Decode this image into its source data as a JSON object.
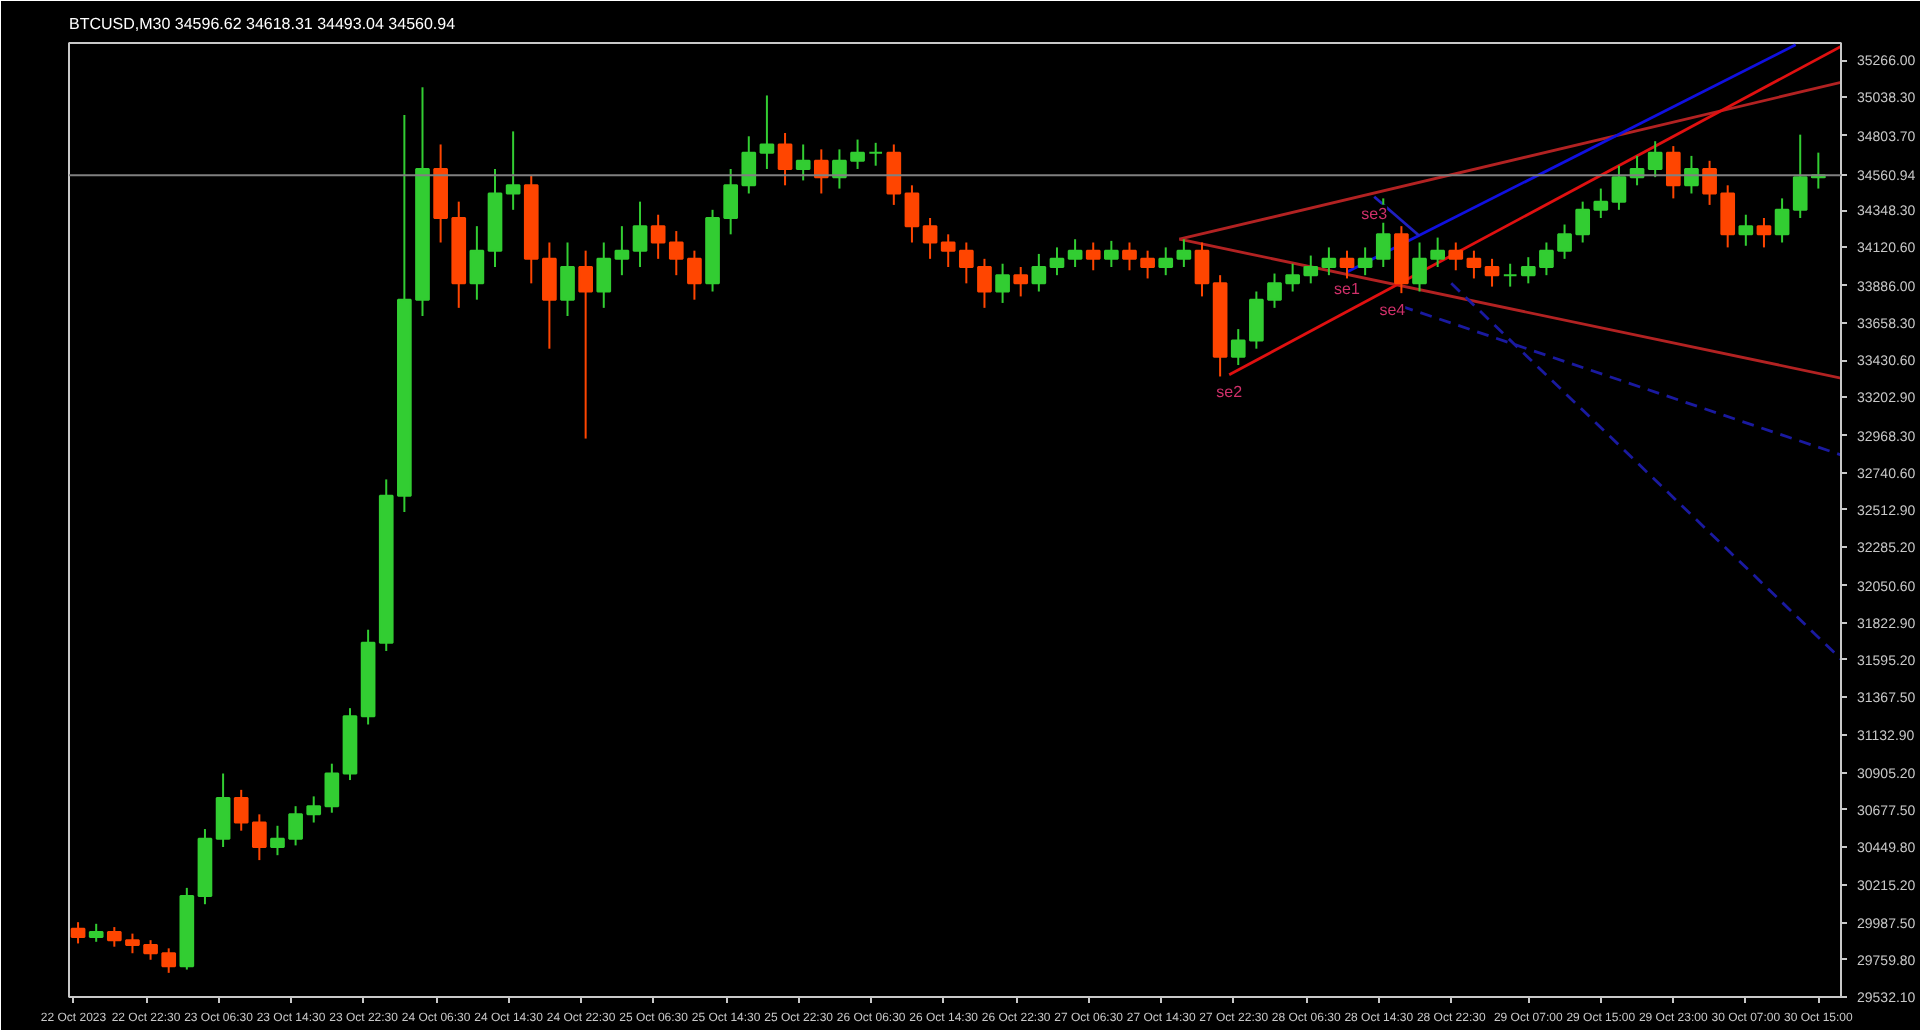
{
  "chart_data": {
    "type": "candlestick",
    "title": "BTCUSD,M30  34596.62 34618.31 34493.04 34560.94",
    "x": [
      "2023-10-22T15:00",
      "2023-10-22T17:00",
      "2023-10-22T19:00",
      "2023-10-22T21:00",
      "2023-10-22T23:00",
      "2023-10-23T01:00",
      "2023-10-23T03:00",
      "2023-10-23T05:00",
      "2023-10-23T07:00",
      "2023-10-23T09:00",
      "2023-10-23T11:00",
      "2023-10-23T13:00",
      "2023-10-23T15:00",
      "2023-10-23T17:00",
      "2023-10-23T19:00",
      "2023-10-23T21:00",
      "2023-10-23T23:00",
      "2023-10-24T01:00",
      "2023-10-24T03:00",
      "2023-10-24T05:00",
      "2023-10-24T07:00",
      "2023-10-24T09:00",
      "2023-10-24T11:00",
      "2023-10-24T13:00",
      "2023-10-24T15:00",
      "2023-10-24T17:00",
      "2023-10-24T19:00",
      "2023-10-24T21:00",
      "2023-10-24T23:00",
      "2023-10-25T01:00",
      "2023-10-25T03:00",
      "2023-10-25T05:00",
      "2023-10-25T07:00",
      "2023-10-25T09:00",
      "2023-10-25T11:00",
      "2023-10-25T13:00",
      "2023-10-25T15:00",
      "2023-10-25T17:00",
      "2023-10-25T19:00",
      "2023-10-25T21:00",
      "2023-10-25T23:00",
      "2023-10-26T01:00",
      "2023-10-26T03:00",
      "2023-10-26T05:00",
      "2023-10-26T07:00",
      "2023-10-26T09:00",
      "2023-10-26T11:00",
      "2023-10-26T13:00",
      "2023-10-26T15:00",
      "2023-10-26T17:00",
      "2023-10-26T19:00",
      "2023-10-26T21:00",
      "2023-10-26T23:00",
      "2023-10-27T01:00",
      "2023-10-27T03:00",
      "2023-10-27T05:00",
      "2023-10-27T07:00",
      "2023-10-27T09:00",
      "2023-10-27T11:00",
      "2023-10-27T13:00",
      "2023-10-27T15:00",
      "2023-10-27T17:00",
      "2023-10-27T19:00",
      "2023-10-27T21:00",
      "2023-10-27T23:00",
      "2023-10-28T01:00",
      "2023-10-28T03:00",
      "2023-10-28T05:00",
      "2023-10-28T07:00",
      "2023-10-28T09:00",
      "2023-10-28T11:00",
      "2023-10-28T13:00",
      "2023-10-28T15:00",
      "2023-10-28T17:00",
      "2023-10-28T19:00",
      "2023-10-28T21:00",
      "2023-10-28T23:00",
      "2023-10-29T01:00",
      "2023-10-29T03:00",
      "2023-10-29T05:00",
      "2023-10-29T07:00",
      "2023-10-29T09:00",
      "2023-10-29T11:00",
      "2023-10-29T13:00",
      "2023-10-29T15:00",
      "2023-10-29T17:00",
      "2023-10-29T19:00",
      "2023-10-29T21:00",
      "2023-10-29T23:00",
      "2023-10-30T01:00",
      "2023-10-30T03:00",
      "2023-10-30T05:00",
      "2023-10-30T07:00",
      "2023-10-30T09:00",
      "2023-10-30T11:00",
      "2023-10-30T13:00",
      "2023-10-30T15:00"
    ],
    "ohlc": [
      [
        29950,
        29990,
        29860,
        29900
      ],
      [
        29900,
        29980,
        29870,
        29930
      ],
      [
        29930,
        29960,
        29840,
        29880
      ],
      [
        29880,
        29920,
        29800,
        29850
      ],
      [
        29850,
        29880,
        29760,
        29800
      ],
      [
        29800,
        29830,
        29680,
        29720
      ],
      [
        29720,
        30200,
        29700,
        30150
      ],
      [
        30150,
        30560,
        30100,
        30500
      ],
      [
        30500,
        30900,
        30450,
        30750
      ],
      [
        30750,
        30800,
        30550,
        30600
      ],
      [
        30600,
        30650,
        30370,
        30450
      ],
      [
        30450,
        30580,
        30400,
        30500
      ],
      [
        30500,
        30700,
        30460,
        30650
      ],
      [
        30650,
        30760,
        30600,
        30700
      ],
      [
        30700,
        30960,
        30660,
        30900
      ],
      [
        30900,
        31300,
        30860,
        31250
      ],
      [
        31250,
        31780,
        31200,
        31700
      ],
      [
        31700,
        32700,
        31650,
        32600
      ],
      [
        32600,
        34930,
        32500,
        33800
      ],
      [
        33800,
        35100,
        33700,
        34600
      ],
      [
        34600,
        34750,
        34150,
        34300
      ],
      [
        34300,
        34400,
        33750,
        33900
      ],
      [
        33900,
        34250,
        33800,
        34100
      ],
      [
        34100,
        34600,
        34000,
        34450
      ],
      [
        34450,
        34830,
        34350,
        34500
      ],
      [
        34500,
        34560,
        33900,
        34050
      ],
      [
        34050,
        34150,
        33500,
        33800
      ],
      [
        33800,
        34150,
        33700,
        34000
      ],
      [
        34000,
        34100,
        32950,
        33850
      ],
      [
        33850,
        34150,
        33750,
        34050
      ],
      [
        34050,
        34250,
        33950,
        34100
      ],
      [
        34100,
        34400,
        34000,
        34250
      ],
      [
        34250,
        34320,
        34050,
        34150
      ],
      [
        34150,
        34220,
        33950,
        34050
      ],
      [
        34050,
        34100,
        33800,
        33900
      ],
      [
        33900,
        34350,
        33850,
        34300
      ],
      [
        34300,
        34600,
        34200,
        34500
      ],
      [
        34500,
        34800,
        34450,
        34700
      ],
      [
        34700,
        35050,
        34600,
        34750
      ],
      [
        34750,
        34820,
        34500,
        34600
      ],
      [
        34600,
        34750,
        34530,
        34650
      ],
      [
        34650,
        34720,
        34450,
        34550
      ],
      [
        34550,
        34720,
        34480,
        34650
      ],
      [
        34650,
        34780,
        34600,
        34700
      ],
      [
        34700,
        34760,
        34620,
        34700
      ],
      [
        34700,
        34750,
        34380,
        34450
      ],
      [
        34450,
        34500,
        34150,
        34250
      ],
      [
        34250,
        34300,
        34050,
        34150
      ],
      [
        34150,
        34200,
        34000,
        34100
      ],
      [
        34100,
        34150,
        33900,
        34000
      ],
      [
        34000,
        34050,
        33750,
        33850
      ],
      [
        33850,
        34020,
        33780,
        33950
      ],
      [
        33950,
        34000,
        33820,
        33900
      ],
      [
        33900,
        34080,
        33850,
        34000
      ],
      [
        34000,
        34120,
        33950,
        34050
      ],
      [
        34050,
        34170,
        34000,
        34100
      ],
      [
        34100,
        34150,
        33980,
        34050
      ],
      [
        34050,
        34160,
        34000,
        34100
      ],
      [
        34100,
        34150,
        33980,
        34050
      ],
      [
        34050,
        34100,
        33930,
        34000
      ],
      [
        34000,
        34120,
        33950,
        34050
      ],
      [
        34050,
        34170,
        34000,
        34100
      ],
      [
        34100,
        34150,
        33820,
        33900
      ],
      [
        33900,
        33950,
        33330,
        33450
      ],
      [
        33450,
        33620,
        33400,
        33550
      ],
      [
        33550,
        33850,
        33500,
        33800
      ],
      [
        33800,
        33960,
        33750,
        33900
      ],
      [
        33900,
        34020,
        33850,
        33950
      ],
      [
        33950,
        34070,
        33900,
        34000
      ],
      [
        34000,
        34120,
        33950,
        34050
      ],
      [
        34050,
        34100,
        33930,
        34000
      ],
      [
        34000,
        34120,
        33950,
        34050
      ],
      [
        34050,
        34420,
        34000,
        34200
      ],
      [
        34200,
        34250,
        33840,
        33900
      ],
      [
        33900,
        34150,
        33850,
        34050
      ],
      [
        34050,
        34180,
        34000,
        34100
      ],
      [
        34100,
        34150,
        33980,
        34050
      ],
      [
        34050,
        34100,
        33930,
        34000
      ],
      [
        34000,
        34050,
        33880,
        33950
      ],
      [
        33950,
        34020,
        33880,
        33950
      ],
      [
        33950,
        34060,
        33900,
        34000
      ],
      [
        34000,
        34150,
        33950,
        34100
      ],
      [
        34100,
        34260,
        34050,
        34200
      ],
      [
        34200,
        34400,
        34150,
        34350
      ],
      [
        34350,
        34480,
        34300,
        34400
      ],
      [
        34400,
        34620,
        34350,
        34550
      ],
      [
        34550,
        34680,
        34500,
        34600
      ],
      [
        34600,
        34770,
        34550,
        34700
      ],
      [
        34700,
        34740,
        34420,
        34500
      ],
      [
        34500,
        34680,
        34450,
        34600
      ],
      [
        34600,
        34650,
        34380,
        34450
      ],
      [
        34450,
        34500,
        34120,
        34200
      ],
      [
        34200,
        34320,
        34130,
        34250
      ],
      [
        34250,
        34300,
        34120,
        34200
      ],
      [
        34200,
        34420,
        34150,
        34350
      ],
      [
        34350,
        34810,
        34300,
        34550
      ],
      [
        34550,
        34700,
        34480,
        34560.94
      ]
    ],
    "series": [
      {
        "type": "line",
        "color": "#b22222",
        "x": [
          "2023-10-27T16:30",
          "2023-10-30T17:30"
        ],
        "values": [
          34170,
          35130
        ]
      },
      {
        "type": "line",
        "color": "#b22222",
        "x": [
          "2023-10-27T16:30",
          "2023-10-30T17:30"
        ],
        "values": [
          34170,
          33320
        ]
      },
      {
        "type": "line",
        "color": "#e01010",
        "x": [
          "2023-10-27T22:00",
          "2023-10-30T17:30"
        ],
        "values": [
          33340,
          35350
        ]
      },
      {
        "type": "line",
        "color": "#1010e0",
        "x": [
          "2023-10-28T11:00",
          "2023-10-30T12:30"
        ],
        "values": [
          33970,
          35360
        ]
      },
      {
        "type": "line",
        "color": "#2020c0",
        "x": [
          "2023-10-28T14:00",
          "2023-10-28T19:00"
        ],
        "values": [
          34430,
          34190
        ]
      },
      {
        "type": "line",
        "color": "#1a1aa0",
        "line_style": "dashed",
        "x": [
          "2023-10-28T17:00",
          "2023-10-30T17:30"
        ],
        "values": [
          33760,
          32850
        ]
      },
      {
        "type": "line",
        "color": "#1a1aa0",
        "line_style": "dashed",
        "x": [
          "2023-10-28T22:30",
          "2023-10-30T17:30"
        ],
        "values": [
          33900,
          31600
        ]
      }
    ],
    "annotations": [
      {
        "text": "se2",
        "x": "2023-10-27T22:00",
        "y": 33340
      },
      {
        "text": "se3",
        "x": "2023-10-28T14:00",
        "y": 34430
      },
      {
        "text": "se1",
        "x": "2023-10-28T11:00",
        "y": 33970
      },
      {
        "text": "se4",
        "x": "2023-10-28T16:00",
        "y": 33840
      }
    ],
    "ref_lines": [
      {
        "axis": "y",
        "value": 34560.94,
        "label": "34560.94",
        "color": "#808080"
      }
    ],
    "xlim": [
      "2023-10-22T14:00",
      "2023-10-30T17:30"
    ],
    "ylim": [
      29532.1,
      35371
    ],
    "xticks": [
      {
        "value": "2023-10-22T14:30",
        "label": "22 Oct 2023"
      },
      {
        "value": "2023-10-22T22:30",
        "label": "22 Oct 22:30"
      },
      {
        "value": "2023-10-23T06:30",
        "label": "23 Oct 06:30"
      },
      {
        "value": "2023-10-23T14:30",
        "label": "23 Oct 14:30"
      },
      {
        "value": "2023-10-23T22:30",
        "label": "23 Oct 22:30"
      },
      {
        "value": "2023-10-24T06:30",
        "label": "24 Oct 06:30"
      },
      {
        "value": "2023-10-24T14:30",
        "label": "24 Oct 14:30"
      },
      {
        "value": "2023-10-24T22:30",
        "label": "24 Oct 22:30"
      },
      {
        "value": "2023-10-25T06:30",
        "label": "25 Oct 06:30"
      },
      {
        "value": "2023-10-25T14:30",
        "label": "25 Oct 14:30"
      },
      {
        "value": "2023-10-25T22:30",
        "label": "25 Oct 22:30"
      },
      {
        "value": "2023-10-26T06:30",
        "label": "26 Oct 06:30"
      },
      {
        "value": "2023-10-26T14:30",
        "label": "26 Oct 14:30"
      },
      {
        "value": "2023-10-26T22:30",
        "label": "26 Oct 22:30"
      },
      {
        "value": "2023-10-27T06:30",
        "label": "27 Oct 06:30"
      },
      {
        "value": "2023-10-27T14:30",
        "label": "27 Oct 14:30"
      },
      {
        "value": "2023-10-27T22:30",
        "label": "27 Oct 22:30"
      },
      {
        "value": "2023-10-28T06:30",
        "label": "28 Oct 06:30"
      },
      {
        "value": "2023-10-28T14:30",
        "label": "28 Oct 14:30"
      },
      {
        "value": "2023-10-28T22:30",
        "label": "28 Oct 22:30"
      },
      {
        "value": "2023-10-29T07:00",
        "label": "29 Oct 07:00"
      },
      {
        "value": "2023-10-29T15:00",
        "label": "29 Oct 15:00"
      },
      {
        "value": "2023-10-29T23:00",
        "label": "29 Oct 23:00"
      },
      {
        "value": "2023-10-30T07:00",
        "label": "30 Oct 07:00"
      },
      {
        "value": "2023-10-30T15:00",
        "label": "30 Oct 15:00"
      }
    ],
    "yticks": [
      {
        "value": 35266.0,
        "label": "35266.00"
      },
      {
        "value": 35038.3,
        "label": "35038.30"
      },
      {
        "value": 34803.7,
        "label": "34803.70"
      },
      {
        "value": 34348.3,
        "label": "34348.30"
      },
      {
        "value": 34120.6,
        "label": "34120.60"
      },
      {
        "value": 33886.0,
        "label": "33886.00"
      },
      {
        "value": 33658.3,
        "label": "33658.30"
      },
      {
        "value": 33430.6,
        "label": "33430.60"
      },
      {
        "value": 33202.9,
        "label": "33202.90"
      },
      {
        "value": 32968.3,
        "label": "32968.30"
      },
      {
        "value": 32740.6,
        "label": "32740.60"
      },
      {
        "value": 32512.9,
        "label": "32512.90"
      },
      {
        "value": 32285.2,
        "label": "32285.20"
      },
      {
        "value": 32050.6,
        "label": "32050.60"
      },
      {
        "value": 31822.9,
        "label": "31822.90"
      },
      {
        "value": 31595.2,
        "label": "31595.20"
      },
      {
        "value": 31367.5,
        "label": "31367.50"
      },
      {
        "value": 31132.9,
        "label": "31132.90"
      },
      {
        "value": 30905.2,
        "label": "30905.20"
      },
      {
        "value": 30677.5,
        "label": "30677.50"
      },
      {
        "value": 30449.8,
        "label": "30449.80"
      },
      {
        "value": 30215.2,
        "label": "30215.20"
      },
      {
        "value": 29987.5,
        "label": "29987.50"
      },
      {
        "value": 29759.8,
        "label": "29759.80"
      },
      {
        "value": 29532.1,
        "label": "29532.10"
      }
    ]
  }
}
